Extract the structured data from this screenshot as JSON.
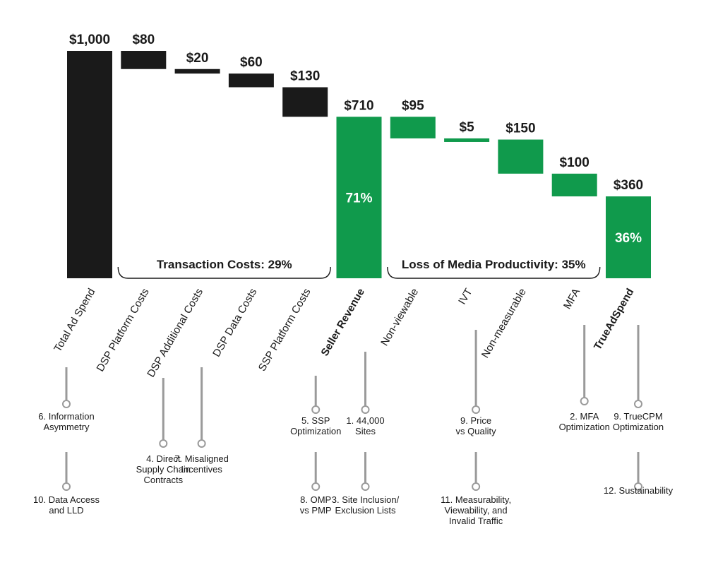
{
  "chart_data": {
    "type": "bar",
    "subtype": "waterfall",
    "categories": [
      "Total Ad Spend",
      "DSP Platform Costs",
      "DSP Additional Costs",
      "DSP Data Costs",
      "SSP Platform Costs",
      "Seller Revenue",
      "Non-viewable",
      "IVT",
      "Non-measurable",
      "MFA",
      "TrueAdSpend"
    ],
    "bold_categories": [
      "Seller Revenue",
      "TrueAdSpend"
    ],
    "values": [
      1000,
      80,
      20,
      60,
      130,
      710,
      95,
      5,
      150,
      100,
      360
    ],
    "value_labels": [
      "$1,000",
      "$80",
      "$20",
      "$60",
      "$130",
      "$710",
      "$95",
      "$5",
      "$150",
      "$100",
      "$360"
    ],
    "kinds": [
      "total",
      "decrease",
      "decrease",
      "decrease",
      "decrease",
      "total",
      "decrease",
      "decrease",
      "decrease",
      "decrease",
      "total"
    ],
    "percent_labels": [
      {
        "category": "Seller Revenue",
        "label": "71%"
      },
      {
        "category": "TrueAdSpend",
        "label": "36%"
      }
    ],
    "brackets": [
      {
        "label": "Transaction Costs: 29%",
        "from": "DSP Platform Costs",
        "to": "SSP Platform Costs"
      },
      {
        "label": "Loss of Media Productivity: 35%",
        "from": "Non-viewable",
        "to": "MFA"
      }
    ],
    "annotations": [
      {
        "category": "Total Ad Spend",
        "items": [
          "6. Information\nAsymmetry",
          "10. Data Access\nand LLD"
        ]
      },
      {
        "category": "DSP Platform Costs",
        "items": [
          "4. Direct\nSupply Chain\nContracts"
        ]
      },
      {
        "category": "DSP Additional Costs",
        "items": [
          "7. Misaligned\nIncentives"
        ]
      },
      {
        "category": "SSP Platform Costs",
        "items": [
          "5. SSP\nOptimization",
          "8. OMP\nvs PMP"
        ]
      },
      {
        "category": "Seller Revenue",
        "items": [
          "1. 44,000\nSites",
          "3. Site Inclusion/\nExclusion Lists"
        ]
      },
      {
        "category": "IVT",
        "items": [
          "9. Price\nvs Quality",
          "11. Measurability,\nViewability, and\nInvalid Traffic"
        ]
      },
      {
        "category": "MFA",
        "items": [
          "2. MFA\nOptimization"
        ]
      },
      {
        "category": "TrueAdSpend",
        "items": [
          "9. TrueCPM\nOptimization",
          "12. Sustainability"
        ]
      }
    ],
    "ylim": [
      0,
      1000
    ],
    "grid": false,
    "legend": "none"
  },
  "colors": {
    "black_bar": "#1a1a1a",
    "green_bar": "#109a4c",
    "connector": "#9a9a9a",
    "text": "#1a1a1a"
  }
}
